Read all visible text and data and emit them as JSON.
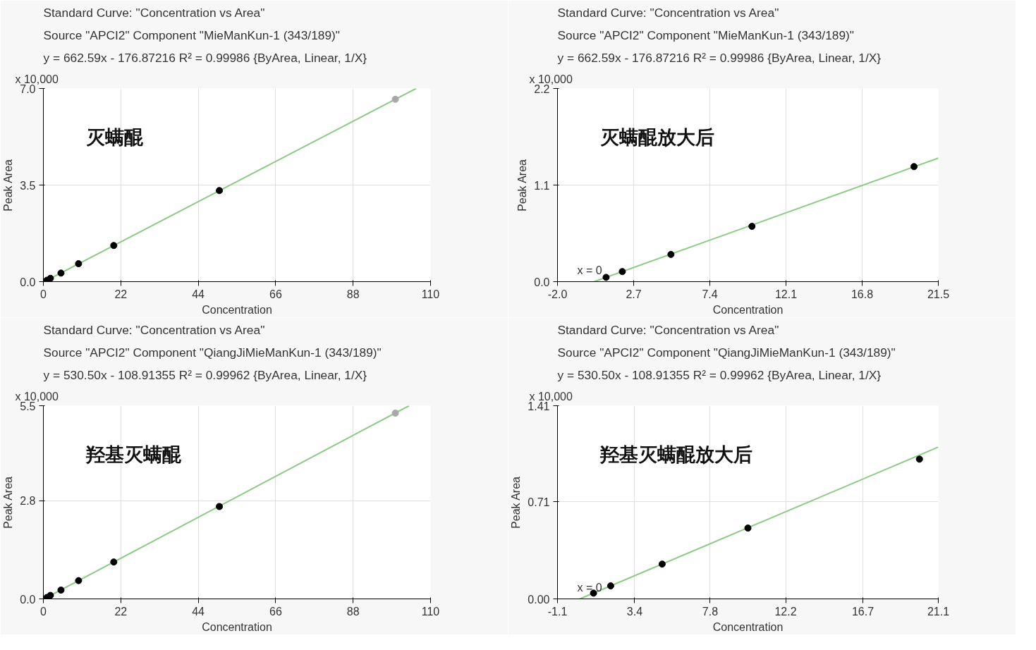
{
  "chart_data": [
    {
      "type": "scatter",
      "title": "Standard Curve: \"Concentration vs Area\"",
      "subtitle": "Source \"APCI2\" Component \"MieManKun-1 (343/189)\"",
      "annotations": [
        "y = 662.59x - 176.87216     R² = 0.99986  {ByArea, Linear, 1/X}",
        "x 10,000",
        "灭螨醌"
      ],
      "xlabel": "Concentration",
      "ylabel": "Peak Area",
      "xlim": [
        0,
        110
      ],
      "ylim": [
        0,
        7.0
      ],
      "xticks": [
        0,
        22,
        44,
        66,
        88,
        110
      ],
      "yticks": [
        {
          "value": 0,
          "label": "0.0"
        },
        {
          "value": 3.5,
          "label": "3.5"
        },
        {
          "value": 7.0,
          "label": "7.0"
        }
      ],
      "grid": true,
      "marker": "circle",
      "series": [
        {
          "type": "line",
          "marker": "none",
          "color": "#8ccb84",
          "x": [
            0.267,
            105.9
          ],
          "values": [
            0,
            7.0
          ]
        },
        {
          "color": "#000000",
          "x": [
            1,
            2,
            5,
            10,
            20,
            50
          ],
          "values": [
            0.05,
            0.12,
            0.31,
            0.65,
            1.31,
            3.3
          ]
        },
        {
          "color": "#a8a8a8",
          "x": [
            100
          ],
          "values": [
            6.61
          ]
        }
      ]
    },
    {
      "type": "scatter",
      "title": "Standard Curve: \"Concentration vs Area\"",
      "subtitle": "Source \"APCI2\" Component \"MieManKun-1 (343/189)\"",
      "annotations": [
        "y = 662.59x - 176.87216     R² = 0.99986  {ByArea, Linear, 1/X}",
        "x 10,000",
        "灭螨醌放大后",
        "x = 0"
      ],
      "xlabel": "Concentration",
      "ylabel": "Peak Area",
      "xlim": [
        -2.0,
        21.5
      ],
      "ylim": [
        0,
        2.2
      ],
      "xticks": [
        {
          "value": -2.0,
          "label": "-2.0"
        },
        2.7,
        7.4,
        12.1,
        16.8,
        21.5
      ],
      "yticks": [
        {
          "value": 0,
          "label": "0.0"
        },
        1.1,
        2.2
      ],
      "grid": true,
      "marker": "circle",
      "series": [
        {
          "type": "line",
          "marker": "none",
          "color": "#8ccb84",
          "x": [
            0.267,
            21.5
          ],
          "values": [
            0,
            1.407
          ]
        },
        {
          "color": "#000000",
          "x": [
            1,
            2,
            5,
            10,
            20
          ],
          "values": [
            0.049,
            0.115,
            0.31,
            0.63,
            1.31
          ]
        }
      ]
    },
    {
      "type": "scatter",
      "title": "Standard Curve: \"Concentration vs Area\"",
      "subtitle": "Source \"APCI2\" Component \"QiangJiMieManKun-1 (343/189)\"",
      "annotations": [
        "y = 530.50x - 108.91355     R² = 0.99962  {ByArea, Linear, 1/X}",
        "x 10,000",
        "羟基灭螨醌"
      ],
      "xlabel": "Concentration",
      "ylabel": "Peak Area",
      "xlim": [
        0,
        110
      ],
      "ylim": [
        0,
        5.5
      ],
      "xticks": [
        0,
        22,
        44,
        66,
        88,
        110
      ],
      "yticks": [
        {
          "value": 0,
          "label": "0.0"
        },
        2.8,
        5.5
      ],
      "grid": true,
      "marker": "circle",
      "series": [
        {
          "type": "line",
          "marker": "none",
          "color": "#8ccb84",
          "x": [
            0.205,
            103.9
          ],
          "values": [
            0,
            5.5
          ]
        },
        {
          "color": "#000000",
          "x": [
            1,
            2,
            5,
            10,
            20,
            50
          ],
          "values": [
            0.04,
            0.1,
            0.25,
            0.52,
            1.05,
            2.63
          ]
        },
        {
          "color": "#a8a8a8",
          "x": [
            100
          ],
          "values": [
            5.29
          ]
        }
      ]
    },
    {
      "type": "scatter",
      "title": "Standard Curve: \"Concentration vs Area\"",
      "subtitle": "Source \"APCI2\" Component \"QiangJiMieManKun-1 (343/189)\"",
      "annotations": [
        "y = 530.50x - 108.91355     R² = 0.99962  {ByArea, Linear, 1/X}",
        "x 10,000",
        "羟基灭螨醌放大后",
        "x = 0"
      ],
      "xlabel": "Concentration",
      "ylabel": "Peak Area",
      "xlim": [
        -1.1,
        21.1
      ],
      "ylim": [
        0,
        1.41
      ],
      "xticks": [
        {
          "value": -1.1,
          "label": "-1.1"
        },
        3.4,
        7.8,
        12.2,
        16.7,
        21.1
      ],
      "yticks": [
        {
          "value": 0,
          "label": "0.00"
        },
        0.71,
        1.41
      ],
      "grid": true,
      "marker": "circle",
      "series": [
        {
          "type": "line",
          "marker": "none",
          "color": "#8ccb84",
          "x": [
            0.205,
            21.1
          ],
          "values": [
            0,
            1.108
          ]
        },
        {
          "color": "#000000",
          "x": [
            1,
            2,
            5,
            10,
            20
          ],
          "values": [
            0.042,
            0.095,
            0.254,
            0.517,
            1.02
          ]
        }
      ]
    }
  ]
}
